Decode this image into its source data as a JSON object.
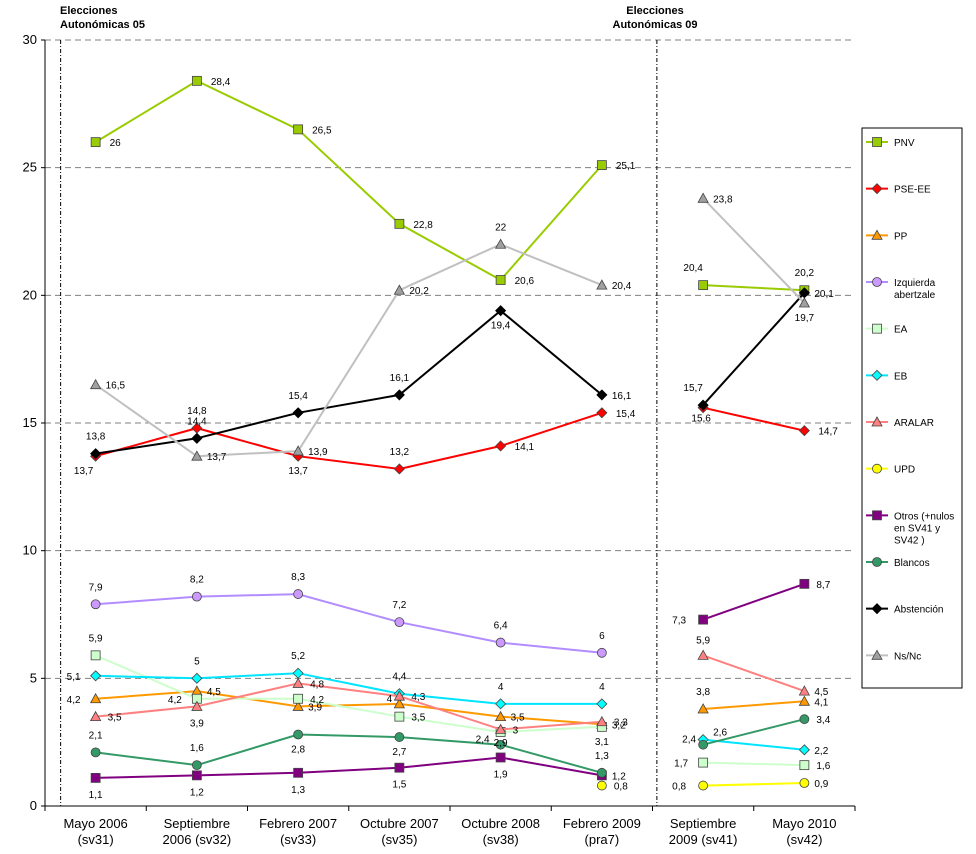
{
  "annotations": [
    {
      "lines": [
        "Elecciones",
        "Autonómicas 05"
      ]
    },
    {
      "lines": [
        "Elecciones",
        "Autonómicas 09"
      ]
    }
  ],
  "chart_data": {
    "type": "line",
    "categories": [
      [
        "Mayo 2006",
        "(sv31)"
      ],
      [
        "Septiembre",
        "2006 (sv32)"
      ],
      [
        "Febrero 2007",
        "(sv33)"
      ],
      [
        "Octubre 2007",
        "(sv35)"
      ],
      [
        "Octubre 2008",
        "(sv38)"
      ],
      [
        "Febrero 2009",
        "(pra7)"
      ],
      [
        "Septiembre",
        "2009 (sv41)"
      ],
      [
        "Mayo 2010",
        "(sv42)"
      ]
    ],
    "ylim": [
      0,
      30
    ],
    "yticks": [
      0,
      5,
      10,
      15,
      20,
      25,
      30
    ],
    "grid": "horizontal dashed",
    "legend_position": "right",
    "breaks_after_index": 5,
    "series": [
      {
        "name": "PNV",
        "color": "#99CC00",
        "fill": "#99CC00",
        "marker": "square",
        "values": [
          26,
          28.4,
          26.5,
          22.8,
          20.6,
          25.1,
          20.4,
          20.2
        ],
        "labels": [
          "26",
          "28,4",
          "26,5",
          "22,8",
          "20,6",
          "25,1",
          "20,4",
          "20,2"
        ]
      },
      {
        "name": "PSE-EE",
        "color": "#FF0000",
        "fill": "#FF0000",
        "marker": "diamond",
        "values": [
          13.7,
          14.8,
          13.7,
          13.2,
          14.1,
          15.4,
          15.6,
          14.7
        ],
        "labels": [
          "13,7",
          "14,8",
          "13,7",
          "13,2",
          "14,1",
          "15,4",
          "15,6",
          "14,7"
        ]
      },
      {
        "name": "PP",
        "color": "#FF9900",
        "fill": "#FF9900",
        "marker": "triangle",
        "values": [
          4.2,
          4.5,
          3.9,
          4,
          3.5,
          3.2,
          3.8,
          4.1
        ],
        "labels": [
          "4,2",
          "4,5",
          "3,9",
          "4",
          "3,5",
          "3,2",
          "3,8",
          "4,1"
        ]
      },
      {
        "name": "Izquierda abertzale",
        "legend_lines": [
          "Izquierda",
          "abertzale"
        ],
        "color": "#B38CFF",
        "fill": "#CC99FF",
        "marker": "circle",
        "values": [
          7.9,
          8.2,
          8.3,
          7.2,
          6.4,
          6,
          null,
          null
        ],
        "labels": [
          "7,9",
          "8,2",
          "8,3",
          "7,2",
          "6,4",
          "6",
          "",
          ""
        ]
      },
      {
        "name": "EA",
        "color": "#CCFFCC",
        "fill": "#CCFFCC",
        "marker": "square",
        "values": [
          5.9,
          4.2,
          4.2,
          3.5,
          2.9,
          3.1,
          1.7,
          1.6
        ],
        "labels": [
          "5,9",
          "4,2",
          "4,2",
          "3,5",
          "2,9",
          "3,1",
          "1,7",
          "1,6"
        ]
      },
      {
        "name": "EB",
        "color": "#00E5FF",
        "fill": "#00FFFF",
        "marker": "diamond",
        "values": [
          5.1,
          5,
          5.2,
          4.4,
          4,
          4,
          2.6,
          2.2
        ],
        "labels": [
          "5,1",
          "5",
          "5,2",
          "4,4",
          "4",
          "4",
          "2,6",
          "2,2"
        ]
      },
      {
        "name": "ARALAR",
        "color": "#FF8080",
        "fill": "#FF8080",
        "marker": "triangle",
        "values": [
          3.5,
          3.9,
          4.8,
          4.3,
          3,
          3.3,
          5.9,
          4.5
        ],
        "labels": [
          "3,5",
          "3,9",
          "4,8",
          "4,3",
          "3",
          "3,3",
          "5,9",
          "4,5"
        ]
      },
      {
        "name": "UPD",
        "color": "#FFFF00",
        "fill": "#FFFF00",
        "marker": "circle",
        "values": [
          null,
          null,
          null,
          null,
          null,
          0.8,
          0.8,
          0.9
        ],
        "labels": [
          "",
          "",
          "",
          "",
          "",
          "0,8",
          "0,8",
          "0,9"
        ]
      },
      {
        "name": "Otros (+nulos en SV41 y SV42 )",
        "legend_lines": [
          "Otros (+nulos",
          "en SV41 y",
          "SV42 )"
        ],
        "color": "#800080",
        "fill": "#800080",
        "marker": "square",
        "values": [
          1.1,
          1.2,
          1.3,
          1.5,
          1.9,
          1.2,
          7.3,
          8.7
        ],
        "labels": [
          "1,1",
          "1,2",
          "1,3",
          "1,5",
          "1,9",
          "1,2",
          "7,3",
          "8,7"
        ]
      },
      {
        "name": "Blancos",
        "color": "#339966",
        "fill": "#339966",
        "marker": "circle",
        "values": [
          2.1,
          1.6,
          2.8,
          2.7,
          2.4,
          1.3,
          2.4,
          3.4
        ],
        "labels": [
          "2,1",
          "1,6",
          "2,8",
          "2,7",
          "2,4",
          "1,3",
          "2,4",
          "3,4"
        ]
      },
      {
        "name": "Abstención",
        "color": "#000000",
        "fill": "#000000",
        "marker": "diamond",
        "values": [
          13.8,
          14.4,
          15.4,
          16.1,
          19.4,
          16.1,
          15.7,
          20.1
        ],
        "labels": [
          "13,8",
          "14,4",
          "15,4",
          "16,1",
          "19,4",
          "16,1",
          "15,7",
          "20,1"
        ]
      },
      {
        "name": "Ns/Nc",
        "color": "#C0C0C0",
        "fill": "#A0A0A0",
        "marker": "triangle",
        "values": [
          16.5,
          13.7,
          13.9,
          20.2,
          22,
          20.4,
          23.8,
          19.7
        ],
        "labels": [
          "16,5",
          "13,7",
          "13,9",
          "20,2",
          "22",
          "20,4",
          "23,8",
          "19,7"
        ]
      }
    ]
  }
}
